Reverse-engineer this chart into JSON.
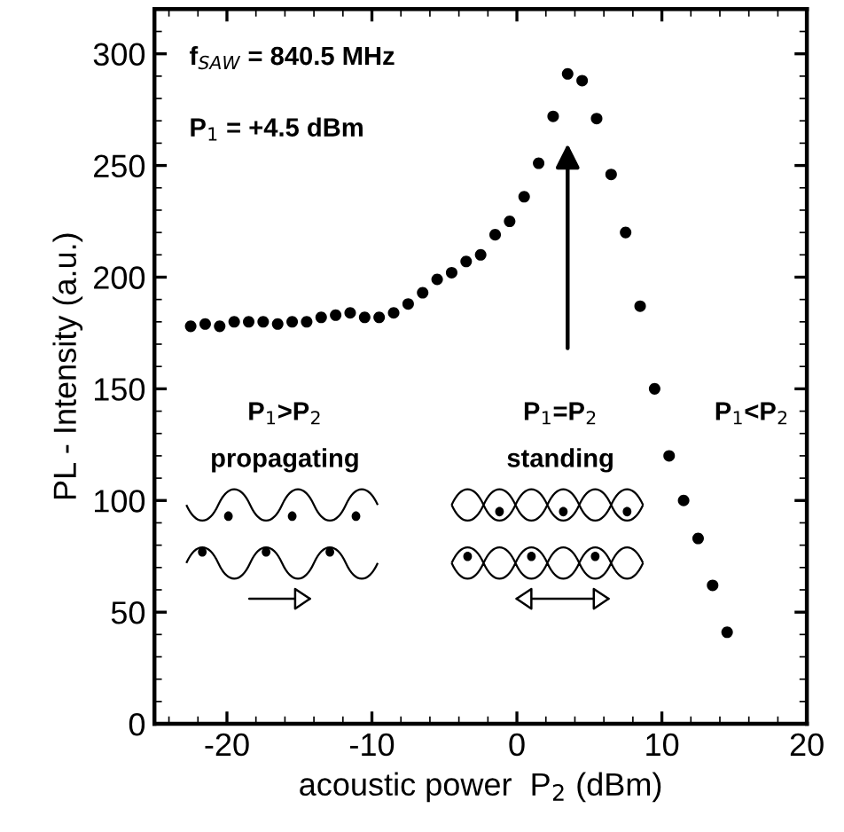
{
  "chart_data": {
    "type": "scatter",
    "xlabel": "acoustic power  P$_{2}$ (dBm)",
    "ylabel": "PL - Intensity (a.u.)",
    "x": [
      -22.5,
      -21.5,
      -20.5,
      -19.5,
      -18.5,
      -17.5,
      -16.5,
      -15.5,
      -14.5,
      -13.5,
      -12.5,
      -11.5,
      -10.5,
      -9.5,
      -8.5,
      -7.5,
      -6.5,
      -5.5,
      -4.5,
      -3.5,
      -2.5,
      -1.5,
      -0.5,
      0.5,
      1.5,
      2.5,
      3.5,
      4.5,
      5.5,
      6.5,
      7.5,
      8.5,
      9.5,
      10.5,
      11.5,
      12.5,
      13.5,
      14.5
    ],
    "series": [
      {
        "color": "#000000",
        "values": [
          178,
          179,
          178,
          180,
          180,
          180,
          179,
          180,
          180,
          182,
          183,
          184,
          182,
          182,
          184,
          188,
          193,
          199,
          202,
          207,
          210,
          219,
          225,
          236,
          251,
          272,
          291,
          288,
          271,
          246,
          220,
          187,
          150,
          120,
          100,
          83,
          62,
          41
        ]
      }
    ],
    "marker": "circle",
    "xlim": [
      -25,
      20
    ],
    "xticks": [
      -20,
      -10,
      0,
      10,
      20
    ],
    "ylim": [
      0,
      320
    ],
    "yticks": [
      0,
      50,
      100,
      150,
      200,
      250,
      300
    ],
    "annotations": [
      "f$_{SAW}$ = 840.5 MHz",
      "P$_{1}$ = +4.5 dBm",
      "P$_{1}$>P$_{2}$",
      "propagating",
      "P$_{1}$=P$_{2}$",
      "standing",
      "P$_{1}$<P$_{2}$"
    ],
    "grid": false,
    "legend": false
  }
}
